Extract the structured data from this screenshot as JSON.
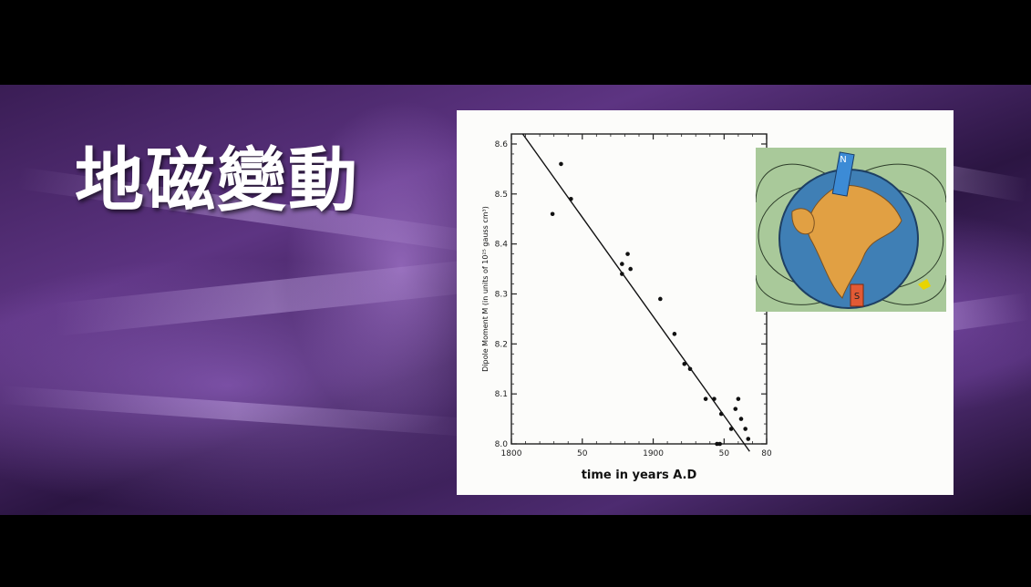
{
  "slide": {
    "title": "地磁變動"
  },
  "chart_data": {
    "type": "scatter",
    "title": "",
    "xlabel": "time in years A.D",
    "ylabel": "Dipole Moment M (in units of 10²⁵ gauss cm³)",
    "xlim": [
      1800,
      1980
    ],
    "ylim": [
      8.0,
      8.62
    ],
    "x_ticks": [
      {
        "value": 1800,
        "label": "1800"
      },
      {
        "value": 1850,
        "label": "50"
      },
      {
        "value": 1900,
        "label": "1900"
      },
      {
        "value": 1950,
        "label": "50"
      },
      {
        "value": 1980,
        "label": "80"
      }
    ],
    "y_ticks": [
      {
        "value": 8.0,
        "label": "8.0"
      },
      {
        "value": 8.1,
        "label": "8.1"
      },
      {
        "value": 8.2,
        "label": "8.2"
      },
      {
        "value": 8.3,
        "label": "8.3"
      },
      {
        "value": 8.4,
        "label": "8.4"
      },
      {
        "value": 8.5,
        "label": "8.5"
      },
      {
        "value": 8.6,
        "label": "8.6"
      }
    ],
    "points": [
      {
        "x": 1829,
        "y": 8.46
      },
      {
        "x": 1835,
        "y": 8.56
      },
      {
        "x": 1842,
        "y": 8.49
      },
      {
        "x": 1878,
        "y": 8.36
      },
      {
        "x": 1878,
        "y": 8.34
      },
      {
        "x": 1882,
        "y": 8.38
      },
      {
        "x": 1884,
        "y": 8.35
      },
      {
        "x": 1905,
        "y": 8.29
      },
      {
        "x": 1915,
        "y": 8.22
      },
      {
        "x": 1922,
        "y": 8.16
      },
      {
        "x": 1926,
        "y": 8.15
      },
      {
        "x": 1937,
        "y": 8.09
      },
      {
        "x": 1943,
        "y": 8.09
      },
      {
        "x": 1945,
        "y": 8.0
      },
      {
        "x": 1947,
        "y": 8.0
      },
      {
        "x": 1948,
        "y": 8.06
      },
      {
        "x": 1955,
        "y": 8.03
      },
      {
        "x": 1958,
        "y": 8.07
      },
      {
        "x": 1960,
        "y": 8.09
      },
      {
        "x": 1962,
        "y": 8.05
      },
      {
        "x": 1965,
        "y": 8.03
      },
      {
        "x": 1967,
        "y": 8.01
      }
    ],
    "fit_line": [
      {
        "x": 1808,
        "y": 8.62
      },
      {
        "x": 1968,
        "y": 7.985
      }
    ],
    "grid": false,
    "legend": "none"
  },
  "illustration": {
    "label_north": "N",
    "label_south": "S"
  },
  "colors": {
    "banner_purple": "#5d3482",
    "panel_bg": "#fcfcfa",
    "ink": "#222222"
  }
}
